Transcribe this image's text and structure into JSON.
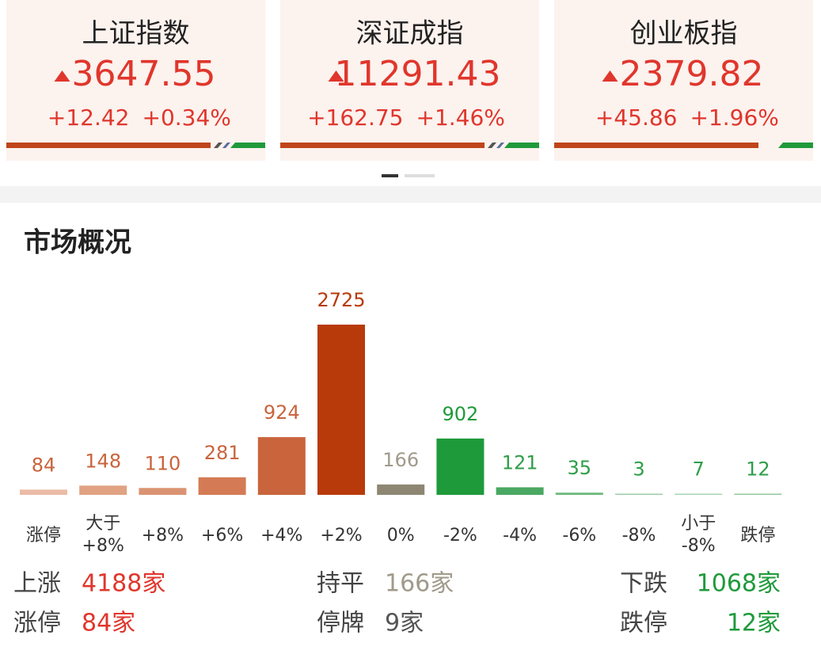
{
  "indices": [
    {
      "name": "上证指数",
      "value": "3647.55",
      "change": "+12.42",
      "percent": "+0.34%"
    },
    {
      "name": "深证成指",
      "value": "11291.43",
      "change": "+162.75",
      "percent": "+1.46%"
    },
    {
      "name": "创业板指",
      "value": "2379.82",
      "change": "+45.86",
      "percent": "+1.96%"
    }
  ],
  "chart_data": {
    "type": "bar",
    "title": "市场概况",
    "categories": [
      "涨停",
      "大于\n+8%",
      "+8%",
      "+6%",
      "+4%",
      "+2%",
      "0%",
      "-2%",
      "-4%",
      "-6%",
      "-8%",
      "小于\n-8%",
      "跌停"
    ],
    "values": [
      84,
      148,
      110,
      281,
      924,
      2725,
      166,
      902,
      121,
      35,
      3,
      7,
      12
    ],
    "colors": [
      "#ebbba6",
      "#e0a282",
      "#da9372",
      "#d47b55",
      "#c9643c",
      "#b83a0a",
      "#8d8672",
      "#1f9a3b",
      "#4aa862",
      "#6cb97d",
      "#9dcda8",
      "#a9d5b3",
      "#93c99e"
    ],
    "label_colors": [
      "#c9643c",
      "#c9643c",
      "#c9643c",
      "#c9643c",
      "#c9643c",
      "#b83a0a",
      "#a09a8a",
      "#1f9a3b",
      "#2e9e48",
      "#2e9e48",
      "#2e9e48",
      "#2e9e48",
      "#2e9e48"
    ]
  },
  "summary": [
    [
      {
        "label": "上涨",
        "value": "4188家",
        "color": "#e0362c"
      },
      {
        "label": "持平",
        "value": "166家",
        "color": "#a09a8a"
      },
      {
        "label": "下跌",
        "value": "1068家",
        "color": "#1f9a3b"
      }
    ],
    [
      {
        "label": "涨停",
        "value": "84家",
        "color": "#e0362c"
      },
      {
        "label": "停牌",
        "value": "9家",
        "color": "#555555"
      },
      {
        "label": "跌停",
        "value": "12家",
        "color": "#1f9a3b"
      }
    ]
  ]
}
